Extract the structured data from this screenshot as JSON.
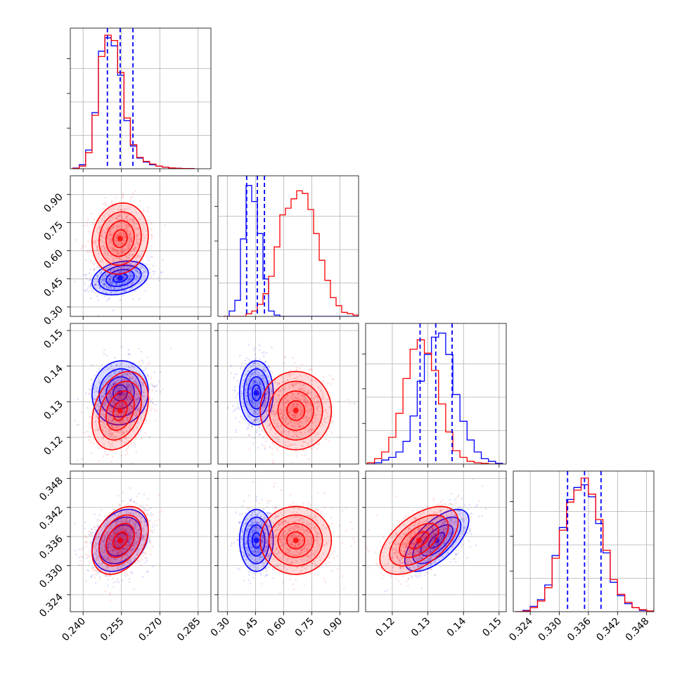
{
  "chart_data": {
    "type": "corner",
    "title": "",
    "series": [
      {
        "name": "",
        "color": "#0000ff"
      },
      {
        "name": "",
        "color": "#ff0000"
      }
    ],
    "grid": true,
    "parameters": [
      {
        "range": [
          0.235,
          0.29
        ],
        "ticks": [
          "0.240",
          "0.255",
          "0.270",
          "0.285"
        ],
        "tick_values": [
          0.24,
          0.255,
          0.27,
          0.285
        ],
        "quantiles": [
          0.2495,
          0.2545,
          0.2595
        ],
        "hist": {
          "bins": [
            0.236,
            0.2385,
            0.241,
            0.2435,
            0.246,
            0.2485,
            0.251,
            0.2535,
            0.256,
            0.2585,
            0.261,
            0.2635,
            0.266,
            0.2685,
            0.271,
            0.2735,
            0.276,
            0.2785,
            0.281
          ],
          "blue": [
            0.005,
            0.03,
            0.14,
            0.42,
            0.88,
            0.98,
            0.92,
            0.7,
            0.36,
            0.17,
            0.08,
            0.05,
            0.03,
            0.02,
            0.012,
            0.005,
            0.003,
            0.002,
            0.001
          ],
          "red": [
            0.003,
            0.02,
            0.12,
            0.4,
            0.84,
            1.0,
            0.96,
            0.72,
            0.38,
            0.18,
            0.085,
            0.055,
            0.035,
            0.02,
            0.012,
            0.006,
            0.003,
            0.002,
            0.001
          ]
        }
      },
      {
        "range": [
          0.25,
          1.0
        ],
        "ticks": [
          "0.30",
          "0.45",
          "0.60",
          "0.75",
          "0.90"
        ],
        "tick_values": [
          0.3,
          0.45,
          0.6,
          0.75,
          0.9
        ],
        "quantiles": [
          0.403,
          0.46,
          0.498
        ],
        "hist": {
          "bins": [
            0.28,
            0.31,
            0.34,
            0.37,
            0.4,
            0.43,
            0.46,
            0.49,
            0.52,
            0.55,
            0.58,
            0.61,
            0.64,
            0.67,
            0.7,
            0.73,
            0.76,
            0.79,
            0.82,
            0.85,
            0.88,
            0.91,
            0.94,
            0.97
          ],
          "blue": [
            0.0,
            0.04,
            0.12,
            0.58,
            0.98,
            0.86,
            0.62,
            0.28,
            0.04,
            0.01,
            0.0,
            0.0,
            0.0,
            0.0,
            0.0,
            0.0,
            0.0,
            0.0,
            0.0,
            0.0,
            0.0,
            0.0,
            0.0,
            0.0
          ],
          "red": [
            0.0,
            0.0,
            0.0,
            0.0,
            0.02,
            0.04,
            0.09,
            0.17,
            0.3,
            0.52,
            0.76,
            0.81,
            0.88,
            0.94,
            0.92,
            0.8,
            0.62,
            0.42,
            0.27,
            0.14,
            0.08,
            0.03,
            0.02,
            0.01
          ]
        }
      },
      {
        "range": [
          0.1125,
          0.152
        ],
        "ticks": [
          "0.12",
          "0.13",
          "0.14",
          "0.15"
        ],
        "tick_values": [
          0.12,
          0.13,
          0.14,
          0.15
        ],
        "quantiles": [
          0.1278,
          0.1322,
          0.1368
        ],
        "hist": {
          "bins": [
            0.113,
            0.115,
            0.117,
            0.119,
            0.121,
            0.123,
            0.125,
            0.127,
            0.129,
            0.131,
            0.133,
            0.135,
            0.137,
            0.139,
            0.141,
            0.143,
            0.145,
            0.147,
            0.149
          ],
          "blue": [
            0.0,
            0.01,
            0.03,
            0.05,
            0.09,
            0.17,
            0.36,
            0.62,
            0.82,
            0.95,
            0.98,
            0.82,
            0.52,
            0.32,
            0.18,
            0.09,
            0.04,
            0.02,
            0.005
          ],
          "red": [
            0.01,
            0.04,
            0.09,
            0.2,
            0.38,
            0.64,
            0.86,
            0.93,
            0.83,
            0.7,
            0.45,
            0.24,
            0.1,
            0.05,
            0.02,
            0.01,
            0.005,
            0.0,
            0.0
          ]
        }
      },
      {
        "range": [
          0.3205,
          0.3495
        ],
        "ticks": [
          "0.324",
          "0.330",
          "0.336",
          "0.342",
          "0.348"
        ],
        "tick_values": [
          0.324,
          0.33,
          0.336,
          0.342,
          0.348
        ],
        "quantiles": [
          0.3317,
          0.3352,
          0.3386
        ],
        "hist": {
          "bins": [
            0.321,
            0.3225,
            0.324,
            0.3255,
            0.327,
            0.3285,
            0.33,
            0.3315,
            0.333,
            0.3345,
            0.336,
            0.3375,
            0.339,
            0.3405,
            0.342,
            0.3435,
            0.345,
            0.3465,
            0.348
          ],
          "blue": [
            0.0,
            0.01,
            0.04,
            0.09,
            0.2,
            0.42,
            0.63,
            0.84,
            0.93,
            0.95,
            0.86,
            0.66,
            0.44,
            0.22,
            0.12,
            0.06,
            0.03,
            0.01,
            0.005
          ],
          "red": [
            0.0,
            0.005,
            0.03,
            0.08,
            0.18,
            0.4,
            0.61,
            0.82,
            0.91,
            1.0,
            0.88,
            0.69,
            0.46,
            0.24,
            0.13,
            0.07,
            0.03,
            0.015,
            0.005
          ]
        }
      }
    ],
    "distributions": {
      "blue": {
        "mean": [
          0.2545,
          0.455,
          0.1325,
          0.3352
        ],
        "sd": [
          0.0055,
          0.045,
          0.0045,
          0.0032
        ],
        "corr": [
          [
            1,
            0.28,
            0.05,
            0.3
          ],
          [
            0.28,
            1,
            0.0,
            0.0
          ],
          [
            0.05,
            0.0,
            1,
            0.65
          ],
          [
            0.3,
            0.0,
            0.65,
            1
          ]
        ]
      },
      "red": {
        "mean": [
          0.2545,
          0.665,
          0.1275,
          0.3352
        ],
        "sd": [
          0.0055,
          0.095,
          0.0055,
          0.0035
        ],
        "corr": [
          [
            1,
            0.1,
            0.3,
            0.35
          ],
          [
            0.1,
            1,
            0.0,
            0.0
          ],
          [
            0.3,
            0.0,
            1,
            0.55
          ],
          [
            0.35,
            0.0,
            0.55,
            1
          ]
        ]
      }
    },
    "contour_levels_sigma": [
      0.5,
      1.0,
      1.5,
      2.0
    ]
  }
}
